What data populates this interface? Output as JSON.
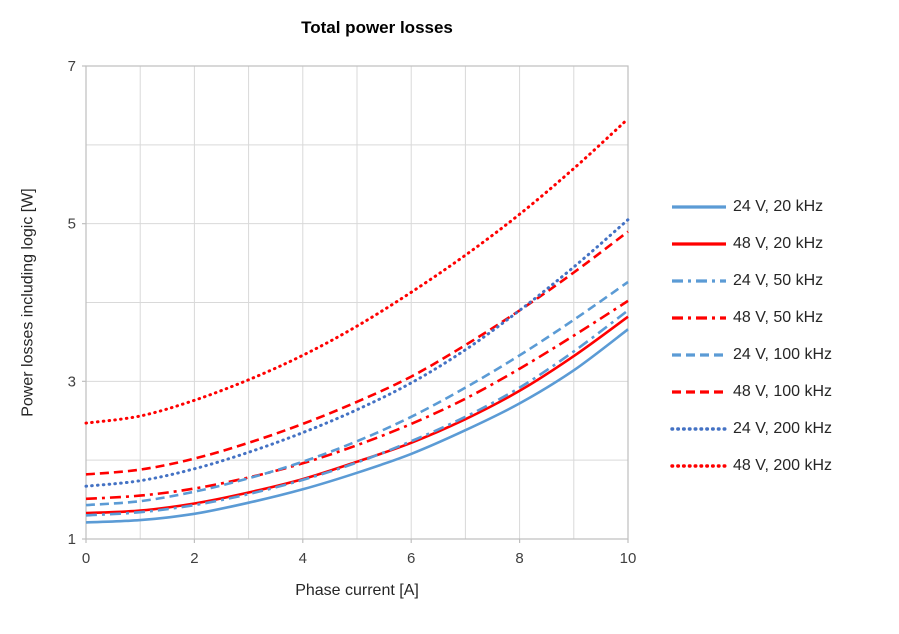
{
  "title": "Total power losses",
  "axes": {
    "x_label": "Phase current [A]",
    "y_label": "Power losses including logic [W]"
  },
  "colors": {
    "blue": "#5B9BD5",
    "blue_dotted": "#4472C4",
    "red": "#FF0000",
    "gridline": "#D9D9D9",
    "axis_border": "#BFBFBF",
    "tick_text": "#404040"
  },
  "chart_data": {
    "type": "line",
    "title": "Total power losses",
    "xlabel": "Phase current [A]",
    "ylabel": "Power losses including logic [W]",
    "xlim": [
      0,
      10
    ],
    "ylim": [
      1,
      7
    ],
    "xticks": [
      0,
      2,
      4,
      6,
      8,
      10
    ],
    "yticks": [
      1,
      3,
      5,
      7
    ],
    "gridline_step_x": 1,
    "gridline_step_y": 1,
    "grid": true,
    "legend_position": "right",
    "x": [
      0,
      1,
      2,
      3,
      4,
      5,
      6,
      7,
      8,
      9,
      10
    ],
    "series": [
      {
        "name": "24 V, 20 kHz",
        "color": "#5B9BD5",
        "dash": "solid",
        "values": [
          1.21,
          1.24,
          1.32,
          1.46,
          1.63,
          1.84,
          2.08,
          2.38,
          2.72,
          3.14,
          3.66
        ]
      },
      {
        "name": "48 V, 20 kHz",
        "color": "#FF0000",
        "dash": "solid",
        "values": [
          1.33,
          1.36,
          1.45,
          1.59,
          1.76,
          1.98,
          2.22,
          2.52,
          2.88,
          3.32,
          3.82
        ]
      },
      {
        "name": "24 V, 50 kHz",
        "color": "#5B9BD5",
        "dash": "dashdot",
        "values": [
          1.3,
          1.34,
          1.43,
          1.57,
          1.75,
          1.97,
          2.24,
          2.55,
          2.92,
          3.38,
          3.9
        ]
      },
      {
        "name": "48 V, 50 kHz",
        "color": "#FF0000",
        "dash": "dashdot",
        "values": [
          1.51,
          1.55,
          1.64,
          1.78,
          1.96,
          2.19,
          2.46,
          2.78,
          3.16,
          3.58,
          4.02
        ]
      },
      {
        "name": "24 V, 100 kHz",
        "color": "#5B9BD5",
        "dash": "dashed",
        "values": [
          1.43,
          1.48,
          1.6,
          1.77,
          1.98,
          2.24,
          2.55,
          2.92,
          3.33,
          3.78,
          4.26
        ]
      },
      {
        "name": "48 V, 100 kHz",
        "color": "#FF0000",
        "dash": "dashed",
        "values": [
          1.82,
          1.88,
          2.02,
          2.22,
          2.46,
          2.74,
          3.06,
          3.46,
          3.9,
          4.38,
          4.9
        ]
      },
      {
        "name": "24 V, 200 kHz",
        "color": "#4472C4",
        "dash": "dotted",
        "values": [
          1.67,
          1.74,
          1.89,
          2.1,
          2.35,
          2.64,
          2.98,
          3.4,
          3.9,
          4.45,
          5.05
        ]
      },
      {
        "name": "48 V, 200 kHz",
        "color": "#FF0000",
        "dash": "dotted",
        "values": [
          2.47,
          2.56,
          2.76,
          3.02,
          3.33,
          3.7,
          4.13,
          4.6,
          5.12,
          5.7,
          6.33
        ]
      }
    ]
  }
}
